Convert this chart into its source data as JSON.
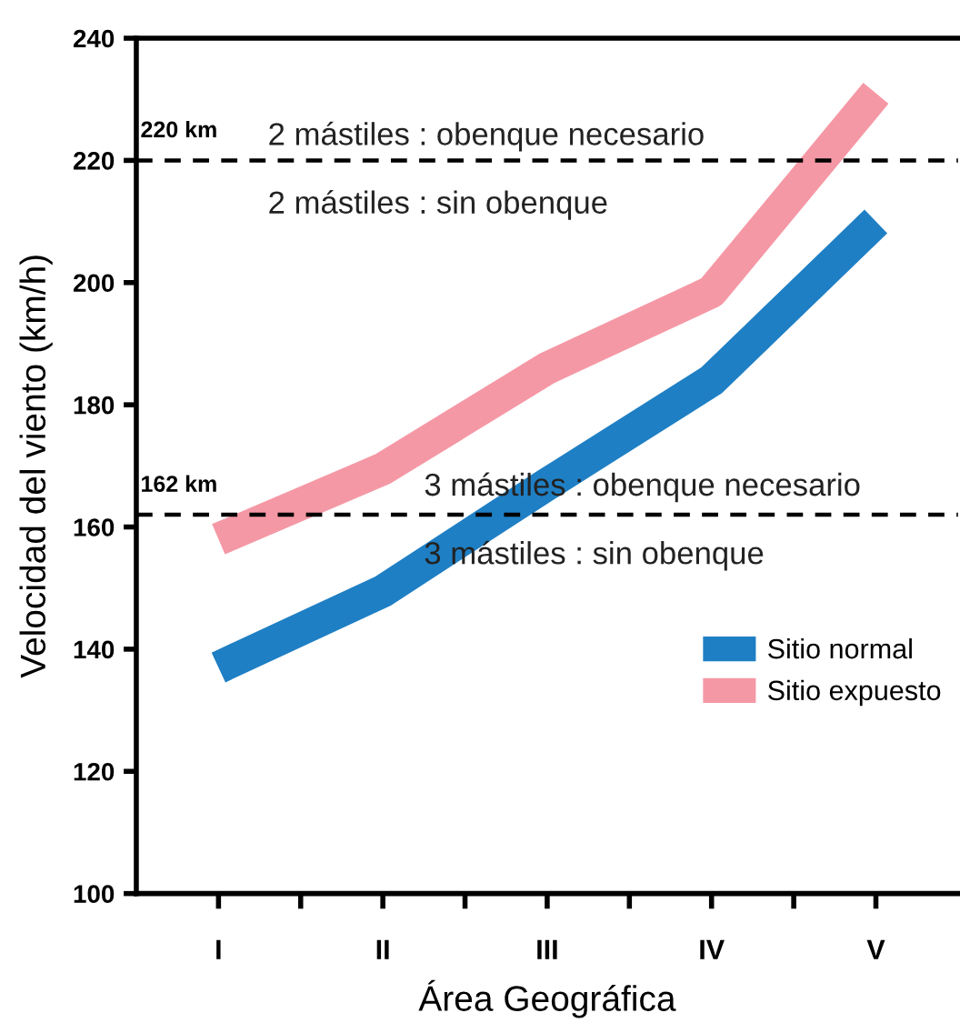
{
  "chart_data": {
    "type": "line",
    "xlabel": "Área Geográfica",
    "ylabel": "Velocidad del viento (km/h)",
    "categories": [
      "I",
      "II",
      "III",
      "IV",
      "V"
    ],
    "series": [
      {
        "name": "Sitio normal",
        "color": "#1f7fc4",
        "values": [
          137,
          149.5,
          167,
          184,
          210
        ]
      },
      {
        "name": "Sitio expuesto",
        "color": "#f598a5",
        "values": [
          158,
          169.5,
          186,
          198.5,
          231
        ]
      }
    ],
    "ylim": [
      100,
      240
    ],
    "yticks": [
      100,
      120,
      140,
      160,
      180,
      200,
      220,
      240
    ],
    "ref_lines": [
      {
        "axis": "y",
        "value": 220,
        "label": "220 km",
        "color": "#000000",
        "line_style": "dashed"
      },
      {
        "axis": "y",
        "value": 162,
        "label": "162 km",
        "color": "#000000",
        "line_style": "dashed"
      }
    ],
    "annotations": [
      "2 mástiles : obenque necesario",
      "2 mástiles : sin obenque",
      "3 mástiles : obenque necesario",
      "3 mástiles : sin obenque"
    ],
    "legend": "bottom right",
    "grid": false,
    "marker": "none",
    "line_style": "solid"
  }
}
